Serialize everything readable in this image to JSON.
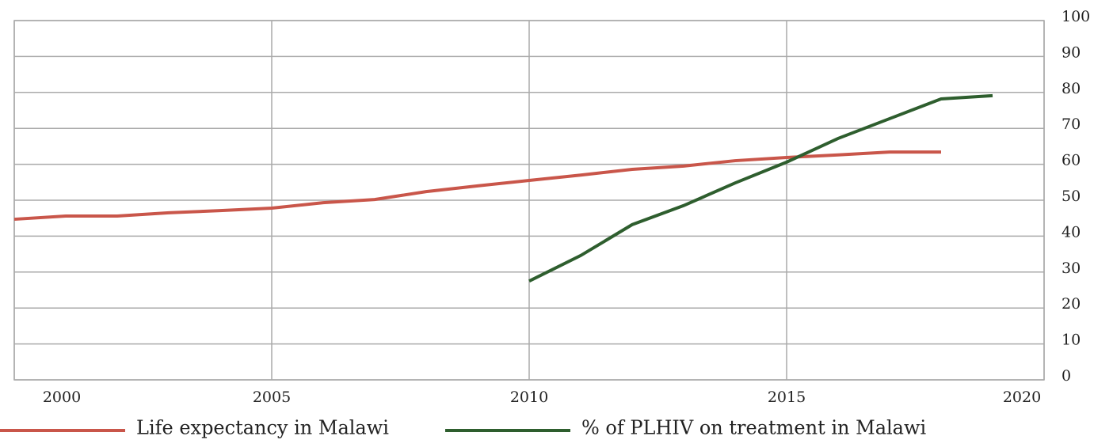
{
  "chart_data": {
    "type": "line",
    "x": [
      2000,
      2001,
      2002,
      2003,
      2004,
      2005,
      2006,
      2007,
      2008,
      2009,
      2010,
      2011,
      2012,
      2013,
      2014,
      2015,
      2016,
      2017,
      2018,
      2019
    ],
    "series": [
      {
        "name": "Life expectancy in Malawi",
        "color": "#c9564a",
        "axis": "y2",
        "values": [
          44.7,
          45.6,
          45.6,
          46.5,
          47.1,
          47.8,
          49.3,
          50.2,
          52.4,
          54.0,
          55.5,
          57.0,
          58.6,
          59.5,
          61.0,
          61.9,
          62.6,
          63.4,
          63.4,
          null
        ]
      },
      {
        "name": "% of PLHIV on treatment  in Malawi",
        "color": "#2e5e2e",
        "axis": "y2",
        "values": [
          null,
          null,
          null,
          null,
          null,
          null,
          null,
          null,
          null,
          null,
          27.5,
          34.6,
          43.2,
          48.5,
          54.8,
          60.6,
          67.2,
          72.7,
          78.2,
          79.1
        ]
      }
    ],
    "xlim": [
      2000,
      2020
    ],
    "xticks": [
      2000,
      2005,
      2010,
      2015,
      2020
    ],
    "y2lim": [
      0,
      100
    ],
    "y2ticks": [
      0,
      10,
      20,
      30,
      40,
      50,
      60,
      70,
      80,
      90,
      100
    ],
    "grid": true,
    "legend": "bottom"
  }
}
